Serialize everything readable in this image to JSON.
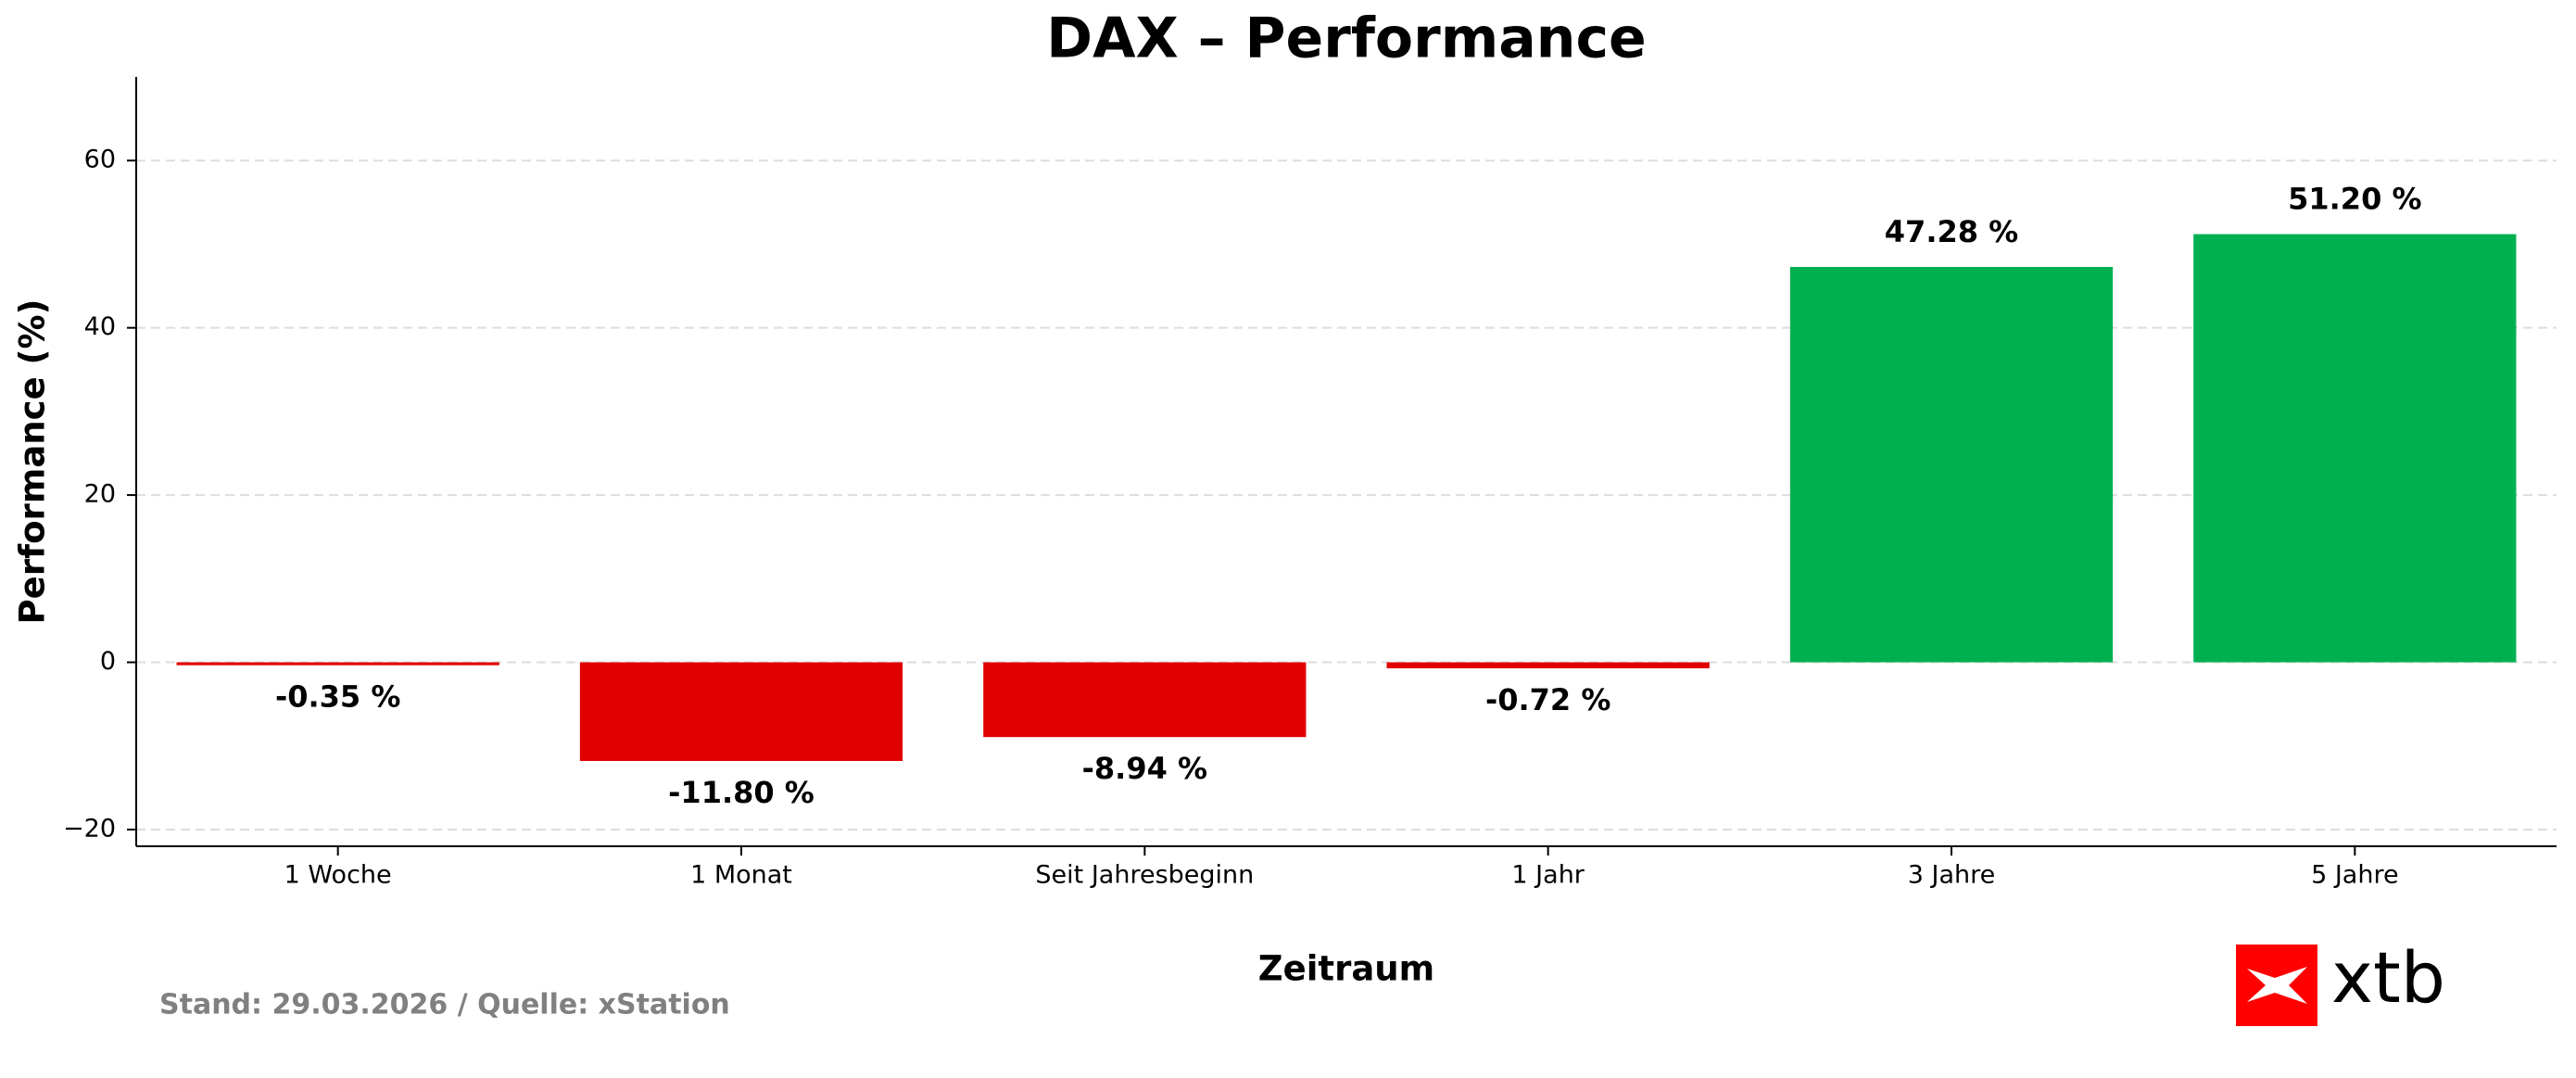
{
  "chart_data": {
    "type": "bar",
    "title": "DAX – Performance",
    "x_label": "Zeitraum",
    "y_label": "Performance (%)",
    "categories": [
      "1 Woche",
      "1 Monat",
      "Seit Jahresbeginn",
      "1 Jahr",
      "3 Jahre",
      "5 Jahre"
    ],
    "values": [
      -0.35,
      -11.8,
      -8.94,
      -0.72,
      47.28,
      51.2
    ],
    "value_labels": [
      "-0.35 %",
      "-11.80 %",
      "-8.94 %",
      "-0.72 %",
      "47.28 %",
      "51.20 %"
    ],
    "colors": [
      "#e00000",
      "#e00000",
      "#e00000",
      "#e00000",
      "#00b050",
      "#00b050"
    ],
    "ylim": [
      -22,
      70
    ],
    "yticks": [
      {
        "value": -20,
        "label": "−20"
      },
      0,
      20,
      40,
      60
    ],
    "grid": true,
    "footer": "Stand: 29.03.2026 / Quelle: xStation",
    "logo": "xtb"
  }
}
